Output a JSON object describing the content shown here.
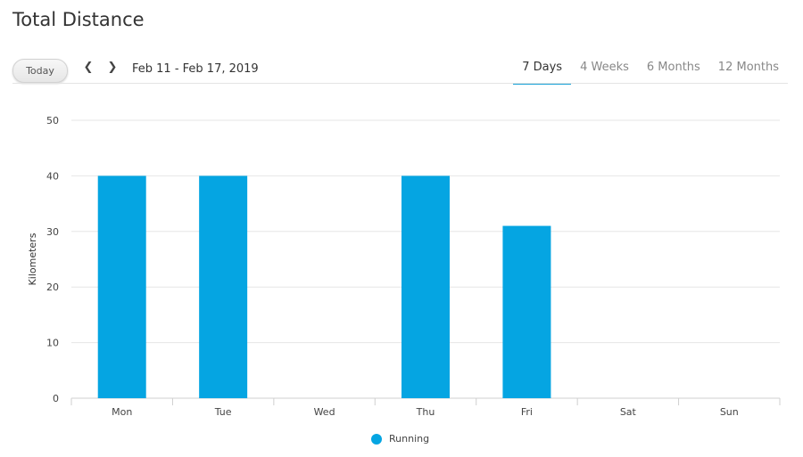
{
  "header": {
    "title": "Total Distance",
    "today_label": "Today",
    "prev_icon": "chevron-left-icon",
    "next_icon": "chevron-right-icon",
    "date_range": "Feb 11 - Feb 17, 2019"
  },
  "tabs": [
    {
      "label": "7 Days",
      "active": true
    },
    {
      "label": "4 Weeks",
      "active": false
    },
    {
      "label": "6 Months",
      "active": false
    },
    {
      "label": "12 Months",
      "active": false
    }
  ],
  "chart_data": {
    "type": "bar",
    "categories": [
      "Mon",
      "Tue",
      "Wed",
      "Thu",
      "Fri",
      "Sat",
      "Sun"
    ],
    "series": [
      {
        "name": "Running",
        "values": [
          40,
          40,
          0,
          40,
          31,
          0,
          0
        ],
        "color": "#05a5e2"
      }
    ],
    "ylabel": "Kilometers",
    "ylim": [
      0,
      50
    ],
    "yticks": [
      0,
      10,
      20,
      30,
      40,
      50
    ],
    "grid": true,
    "legend_position": "bottom-center"
  },
  "legend": {
    "label": "Running",
    "color": "#05a5e2"
  }
}
